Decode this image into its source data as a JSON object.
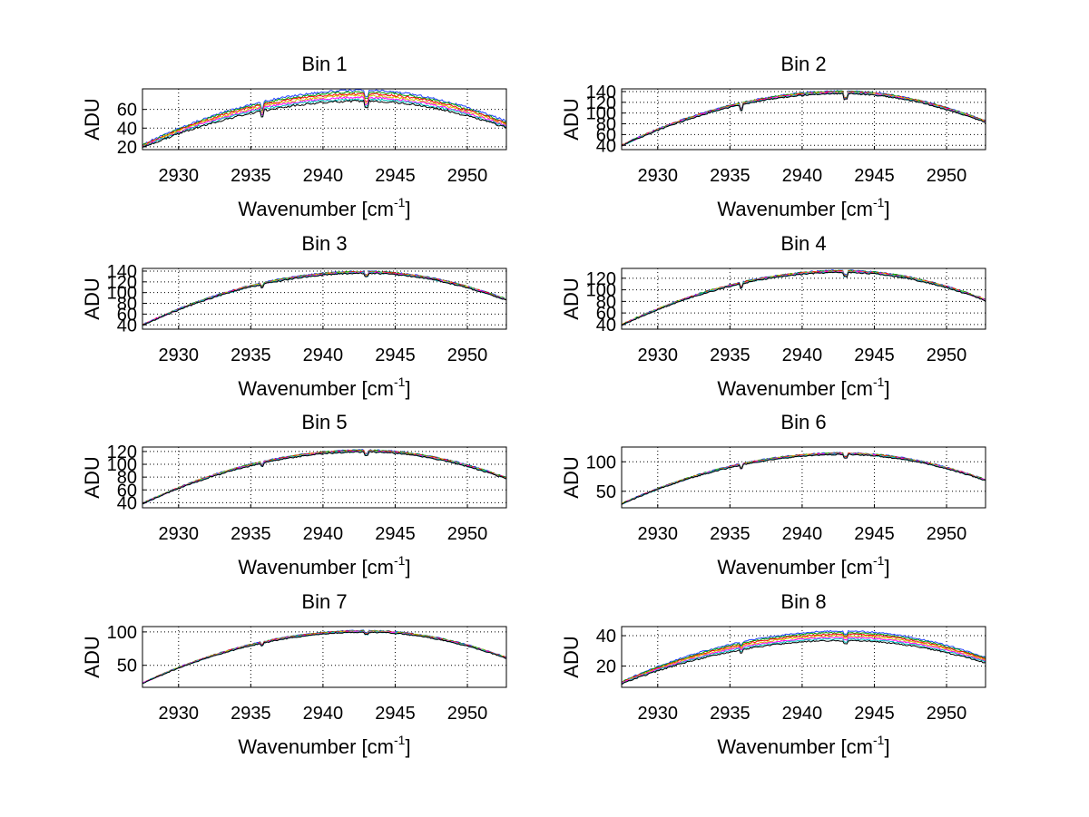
{
  "figure": {
    "background": "#ffffff"
  },
  "series_colors": [
    "#1f3fff",
    "#00a000",
    "#ff0000",
    "#d4c400",
    "#ff00ff",
    "#00c0c0",
    "#000000"
  ],
  "chart_data": [
    {
      "type": "line",
      "title": "Bin 1",
      "xlabel_main": "Wavenumber [cm",
      "xlabel_sup": "-1",
      "xlabel_end": "]",
      "ylabel": "ADU",
      "xlim": [
        2927.5,
        2952.7
      ],
      "ylim": [
        17,
        82
      ],
      "xticks": [
        2930,
        2935,
        2940,
        2945,
        2950
      ],
      "yticks": [
        20,
        40,
        60
      ],
      "peak": 75,
      "floor": 17,
      "dip": 12,
      "spread": 0.09,
      "noise": 2.2
    },
    {
      "type": "line",
      "title": "Bin 2",
      "xlabel_main": "Wavenumber [cm",
      "xlabel_sup": "-1",
      "xlabel_end": "]",
      "ylabel": "ADU",
      "xlim": [
        2927.5,
        2952.7
      ],
      "ylim": [
        32,
        145
      ],
      "xticks": [
        2930,
        2935,
        2940,
        2945,
        2950
      ],
      "yticks": [
        40,
        60,
        80,
        100,
        120,
        140
      ],
      "peak": 139,
      "floor": 33,
      "dip": 18,
      "spread": 0.02,
      "noise": 2.5
    },
    {
      "type": "line",
      "title": "Bin 3",
      "xlabel_main": "Wavenumber [cm",
      "xlabel_sup": "-1",
      "xlabel_end": "]",
      "ylabel": "ADU",
      "xlim": [
        2927.5,
        2952.7
      ],
      "ylim": [
        32,
        145
      ],
      "xticks": [
        2930,
        2935,
        2940,
        2945,
        2950
      ],
      "yticks": [
        40,
        60,
        80,
        100,
        120,
        140
      ],
      "peak": 138,
      "floor": 33,
      "dip": 10,
      "spread": 0.015,
      "noise": 2.5
    },
    {
      "type": "line",
      "title": "Bin 4",
      "xlabel_main": "Wavenumber [cm",
      "xlabel_sup": "-1",
      "xlabel_end": "]",
      "ylabel": "ADU",
      "xlim": [
        2927.5,
        2952.7
      ],
      "ylim": [
        32,
        137
      ],
      "xticks": [
        2930,
        2935,
        2940,
        2945,
        2950
      ],
      "yticks": [
        40,
        60,
        80,
        100,
        120
      ],
      "peak": 132,
      "floor": 33,
      "dip": 12,
      "spread": 0.015,
      "noise": 2.3
    },
    {
      "type": "line",
      "title": "Bin 5",
      "xlabel_main": "Wavenumber [cm",
      "xlabel_sup": "-1",
      "xlabel_end": "]",
      "ylabel": "ADU",
      "xlim": [
        2927.5,
        2952.7
      ],
      "ylim": [
        32,
        127
      ],
      "xticks": [
        2930,
        2935,
        2940,
        2945,
        2950
      ],
      "yticks": [
        40,
        60,
        80,
        100,
        120
      ],
      "peak": 121,
      "floor": 33,
      "dip": 8,
      "spread": 0.015,
      "noise": 2.0
    },
    {
      "type": "line",
      "title": "Bin 6",
      "xlabel_main": "Wavenumber [cm",
      "xlabel_sup": "-1",
      "xlabel_end": "]",
      "ylabel": "ADU",
      "xlim": [
        2927.5,
        2952.7
      ],
      "ylim": [
        22,
        125
      ],
      "xticks": [
        2930,
        2935,
        2940,
        2945,
        2950
      ],
      "yticks": [
        50,
        100
      ],
      "peak": 114,
      "floor": 23,
      "dip": 10,
      "spread": 0.015,
      "noise": 2.0
    },
    {
      "type": "line",
      "title": "Bin 7",
      "xlabel_main": "Wavenumber [cm",
      "xlabel_sup": "-1",
      "xlabel_end": "]",
      "ylabel": "ADU",
      "xlim": [
        2927.5,
        2952.7
      ],
      "ylim": [
        17,
        108
      ],
      "xticks": [
        2930,
        2935,
        2940,
        2945,
        2950
      ],
      "yticks": [
        50,
        100
      ],
      "peak": 101,
      "floor": 18,
      "dip": 6,
      "spread": 0.015,
      "noise": 1.6
    },
    {
      "type": "line",
      "title": "Bin 8",
      "xlabel_main": "Wavenumber [cm",
      "xlabel_sup": "-1",
      "xlabel_end": "]",
      "ylabel": "ADU",
      "xlim": [
        2927.5,
        2952.7
      ],
      "ylim": [
        6,
        46
      ],
      "xticks": [
        2930,
        2935,
        2940,
        2945,
        2950
      ],
      "yticks": [
        20,
        40
      ],
      "peak": 40,
      "floor": 7,
      "dip": 3,
      "spread": 0.09,
      "noise": 0.9
    }
  ]
}
